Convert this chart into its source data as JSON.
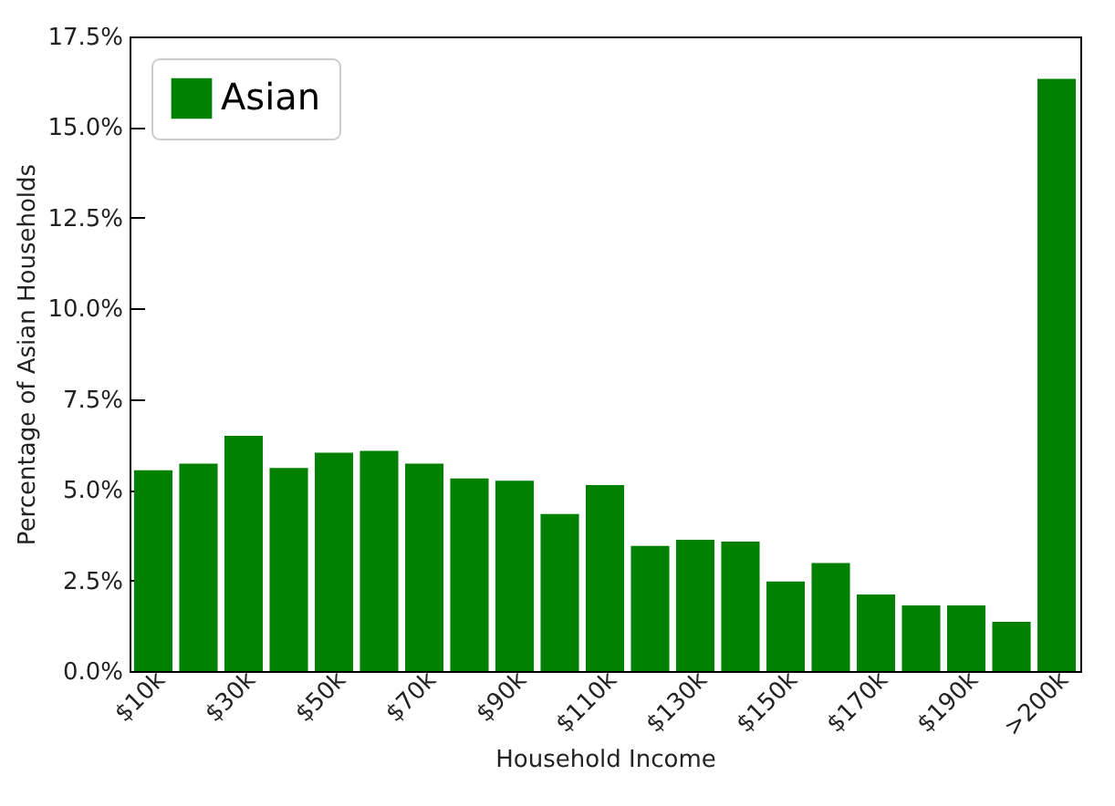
{
  "chart_data": {
    "type": "bar",
    "xlabel": "Household Income",
    "ylabel": "Percentage of Asian Households",
    "categories": [
      "$10k",
      null,
      "$30k",
      null,
      "$50k",
      null,
      "$70k",
      null,
      "$90k",
      null,
      "$110k",
      null,
      "$130k",
      null,
      "$150k",
      null,
      "$170k",
      null,
      "$190k",
      null,
      ">200k"
    ],
    "series": [
      {
        "name": "Asian",
        "color": "#008000",
        "values": [
          5.54,
          5.72,
          6.49,
          5.6,
          6.02,
          6.07,
          5.72,
          5.31,
          5.25,
          4.33,
          5.13,
          3.45,
          3.62,
          3.57,
          2.47,
          2.98,
          2.11,
          1.81,
          1.81,
          1.36,
          16.33
        ]
      }
    ],
    "ylim": [
      0,
      17.5
    ],
    "yticks": [
      {
        "value": 0,
        "label": "0.0%"
      },
      {
        "value": 2.5,
        "label": "2.5%"
      },
      {
        "value": 5,
        "label": "5.0%"
      },
      {
        "value": 7.5,
        "label": "7.5%"
      },
      {
        "value": 10,
        "label": "10.0%"
      },
      {
        "value": 12.5,
        "label": "12.5%"
      },
      {
        "value": 15,
        "label": "15.0%"
      },
      {
        "value": 17.5,
        "label": "17.5%"
      }
    ],
    "legend": "top left",
    "grid": false
  }
}
